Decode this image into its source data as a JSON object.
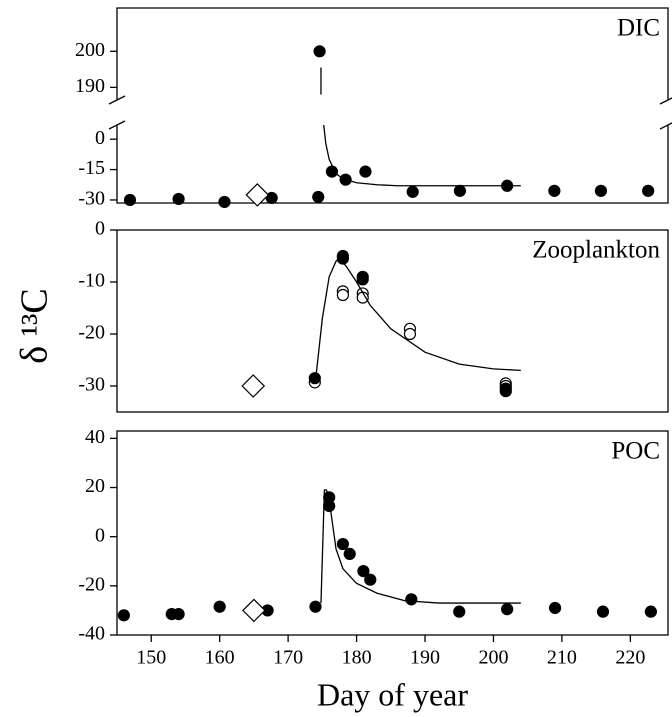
{
  "chart_data": [
    {
      "type": "scatter",
      "title": "DIC",
      "xlim": [
        145,
        225.5
      ],
      "ylim": [
        -31.5,
        7
      ],
      "yticks": [
        -30,
        -15,
        0
      ],
      "y_upper_lim": [
        186.5,
        212
      ],
      "y_upper_ticks": [
        190,
        200
      ],
      "axis_break": true,
      "series": [
        {
          "marker": "circle",
          "color": "#000000",
          "x": [
            146.9,
            154,
            160.7,
            167.6,
            174.4,
            174.6,
            176.4,
            178.4,
            181.3,
            188.2,
            195.1,
            202,
            208.9,
            215.7,
            222.6
          ],
          "values": [
            -30,
            -29.5,
            -31,
            -29,
            -28.5,
            200,
            -16,
            -20,
            -16,
            -26,
            -25.5,
            -23,
            -25.5,
            -25.5,
            -25.5
          ]
        },
        {
          "marker": "diamond",
          "color": "#ffffff",
          "x": [
            165.5
          ],
          "values": [
            -27.5
          ]
        },
        {
          "marker": "line",
          "color": "#000000",
          "x": [
            174.8,
            174.8,
            175,
            175.2,
            175.5,
            176,
            177,
            178,
            180,
            183,
            186,
            190,
            195,
            200,
            204
          ],
          "values": [
            195.5,
            188,
            null,
            7,
            -2,
            -10,
            -17,
            -19.5,
            -21.5,
            -22.5,
            -23,
            -23,
            -23,
            -23,
            -23
          ]
        }
      ]
    },
    {
      "type": "scatter",
      "title": "Zooplankton",
      "ylabel": "δ ¹³C",
      "xlim": [
        145,
        225.5
      ],
      "ylim": [
        -35,
        0
      ],
      "yticks": [
        -30,
        -20,
        -10,
        0
      ],
      "series": [
        {
          "marker": "open-circle",
          "color": "#ffffff",
          "x": [
            173.9,
            178,
            178,
            180.9,
            180.9,
            187.8,
            187.8,
            201.8,
            201.8
          ],
          "values": [
            -29.3,
            -11.8,
            -12.5,
            -12.2,
            -13,
            -19,
            -20,
            -29.5,
            -30
          ]
        },
        {
          "marker": "circle",
          "color": "#000000",
          "x": [
            173.9,
            178,
            178,
            180.9,
            180.9,
            201.8,
            201.8
          ],
          "values": [
            -28.5,
            -5,
            -5.5,
            -9,
            -9.5,
            -30.5,
            -31
          ]
        },
        {
          "marker": "diamond",
          "color": "#ffffff",
          "x": [
            164.9
          ],
          "values": [
            -30
          ]
        },
        {
          "marker": "line",
          "color": "#000000",
          "x": [
            174,
            175,
            176,
            177,
            177.5,
            178.5,
            180,
            182,
            185,
            190,
            195,
            200,
            204
          ],
          "values": [
            -29,
            -17,
            -9,
            -6,
            -5.5,
            -7,
            -10,
            -14.5,
            -19,
            -23.5,
            -25.8,
            -26.7,
            -27
          ]
        }
      ]
    },
    {
      "type": "scatter",
      "title": "POC",
      "xlabel": "Day of year",
      "xlim": [
        145,
        225.5
      ],
      "ylim": [
        -40,
        43
      ],
      "yticks": [
        -40,
        -20,
        0,
        20,
        40
      ],
      "xticks": [
        150,
        160,
        170,
        180,
        190,
        200,
        210,
        220
      ],
      "series": [
        {
          "marker": "circle",
          "color": "#000000",
          "x": [
            146,
            153,
            154,
            160,
            167,
            174,
            176,
            176,
            178,
            179,
            181,
            182,
            188,
            195,
            202,
            209,
            216,
            223
          ],
          "values": [
            -32,
            -31.5,
            -31.5,
            -28.5,
            -30,
            -28.5,
            16,
            12.5,
            -3,
            -7,
            -14,
            -17.5,
            -25.5,
            -30.5,
            -29.5,
            -29,
            -30.5,
            -30.5
          ]
        },
        {
          "marker": "diamond",
          "color": "#ffffff",
          "x": [
            165
          ],
          "values": [
            -30
          ]
        },
        {
          "marker": "line",
          "color": "#000000",
          "x": [
            174.8,
            175.3,
            175.6,
            176,
            177,
            178,
            180,
            183,
            187,
            192,
            204
          ],
          "values": [
            -27,
            19,
            19,
            15,
            -5,
            -13,
            -19,
            -23,
            -26,
            -27,
            -27
          ]
        }
      ]
    }
  ]
}
